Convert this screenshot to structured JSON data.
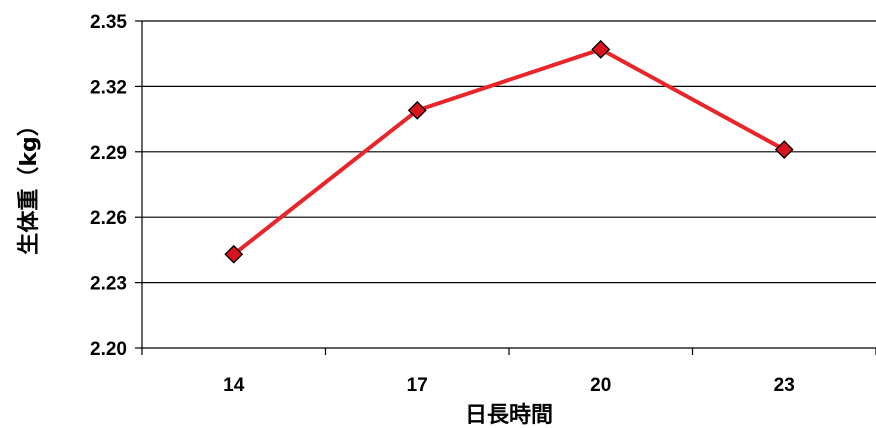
{
  "chart_data": {
    "type": "line",
    "categories": [
      "14",
      "17",
      "20",
      "23"
    ],
    "series": [
      {
        "values": [
          2.243,
          2.309,
          2.337,
          2.291
        ],
        "color": "#e8262a",
        "marker": "diamond",
        "marker_color": "#d8141c"
      }
    ],
    "xlabel": "日長時間",
    "ylabel": "生体重（kg）",
    "ylim": [
      2.2,
      2.35
    ],
    "yticks": [
      "2.20",
      "2.23",
      "2.26",
      "2.29",
      "2.32",
      "2.35"
    ],
    "grid": true
  }
}
